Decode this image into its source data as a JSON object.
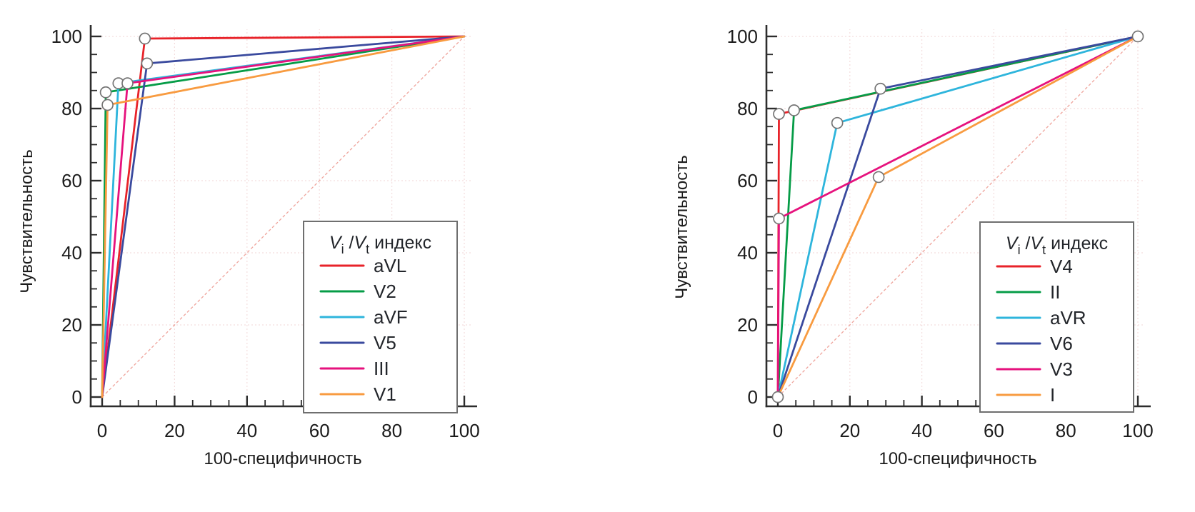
{
  "style": {
    "background": "#ffffff",
    "axis_color": "#2d2d2d",
    "tick_label_color": "#1c1c1c",
    "grid_color": "#f3dddd",
    "diagonal_color": "#efa49c",
    "marker_fill": "#ffffff",
    "marker_stroke": "#757575",
    "legend_border": "#6f6f6f",
    "legend_text": "#23262b"
  },
  "legend_title_parts": {
    "v1": "V",
    "sub1": "i",
    "slash": " /",
    "v2": "V",
    "sub2": "t",
    "word": " индекс"
  },
  "chart_data": [
    {
      "type": "line",
      "kind": "roc",
      "title": "",
      "xlabel": "100-специфичность",
      "ylabel": "Чувствительность",
      "xlim": [
        0,
        100
      ],
      "ylim": [
        0,
        100
      ],
      "x_ticks": [
        0,
        20,
        40,
        60,
        80,
        100
      ],
      "y_ticks": [
        0,
        20,
        40,
        60,
        80,
        100
      ],
      "minor_tick_step": 5,
      "grid": true,
      "legend_position": "lower right",
      "legend_title": "Vi/Vt индекс",
      "series": [
        {
          "name": "aVL",
          "color": "#e8232a",
          "points": [
            [
              0,
              0
            ],
            [
              11.8,
              99.4
            ],
            [
              100,
              100
            ]
          ],
          "operating_point": [
            11.8,
            99.4
          ]
        },
        {
          "name": "V2",
          "color": "#069c47",
          "points": [
            [
              0,
              0
            ],
            [
              1,
              84.5
            ],
            [
              100,
              100
            ]
          ],
          "operating_point": [
            1,
            84.5
          ]
        },
        {
          "name": "aVF",
          "color": "#2eb5dc",
          "points": [
            [
              0,
              0
            ],
            [
              4.5,
              87
            ],
            [
              100,
              100
            ]
          ],
          "operating_point": [
            4.5,
            87
          ]
        },
        {
          "name": "V5",
          "color": "#3a4a9e",
          "points": [
            [
              0,
              0
            ],
            [
              12.4,
              92.5
            ],
            [
              100,
              100
            ]
          ],
          "operating_point": [
            12.4,
            92.5
          ]
        },
        {
          "name": "III",
          "color": "#e6127d",
          "points": [
            [
              0,
              0
            ],
            [
              7,
              87
            ],
            [
              100,
              100
            ]
          ],
          "operating_point": [
            7,
            87
          ]
        },
        {
          "name": "V1",
          "color": "#f89b40",
          "points": [
            [
              0,
              0
            ],
            [
              1.5,
              81
            ],
            [
              100,
              100
            ]
          ],
          "operating_point": [
            1.5,
            81
          ]
        }
      ],
      "reference_line": [
        [
          0,
          0
        ],
        [
          100,
          100
        ]
      ],
      "shared_markers": []
    },
    {
      "type": "line",
      "kind": "roc",
      "title": "",
      "xlabel": "100-специфичность",
      "ylabel": "Чувствительность",
      "xlim": [
        0,
        100
      ],
      "ylim": [
        0,
        100
      ],
      "x_ticks": [
        0,
        20,
        40,
        60,
        80,
        100
      ],
      "y_ticks": [
        0,
        20,
        40,
        60,
        80,
        100
      ],
      "minor_tick_step": 5,
      "grid": true,
      "legend_position": "lower right",
      "legend_title": "Vi/Vt индекс",
      "series": [
        {
          "name": "V4",
          "color": "#e8232a",
          "points": [
            [
              0,
              0
            ],
            [
              0.3,
              78.5
            ],
            [
              100,
              100
            ]
          ],
          "operating_point": [
            0.3,
            78.5
          ]
        },
        {
          "name": "II",
          "color": "#069c47",
          "points": [
            [
              0,
              0
            ],
            [
              4.5,
              79.5
            ],
            [
              100,
              100
            ]
          ],
          "operating_point": [
            4.5,
            79.5
          ]
        },
        {
          "name": "aVR",
          "color": "#2eb5dc",
          "points": [
            [
              0,
              0
            ],
            [
              16.5,
              76
            ],
            [
              100,
              100
            ]
          ],
          "operating_point": [
            16.5,
            76
          ]
        },
        {
          "name": "V6",
          "color": "#3a4a9e",
          "points": [
            [
              0,
              0
            ],
            [
              28.5,
              85.5
            ],
            [
              100,
              100
            ]
          ],
          "operating_point": [
            28.5,
            85.5
          ]
        },
        {
          "name": "V3",
          "color": "#e6127d",
          "points": [
            [
              0,
              0
            ],
            [
              0.3,
              49.5
            ],
            [
              100,
              100
            ]
          ],
          "operating_point": [
            0.3,
            49.5
          ]
        },
        {
          "name": "I",
          "color": "#f89b40",
          "points": [
            [
              0,
              0
            ],
            [
              28,
              61
            ],
            [
              100,
              100
            ]
          ],
          "operating_point": [
            28,
            61
          ]
        }
      ],
      "reference_line": [
        [
          0,
          0
        ],
        [
          100,
          100
        ]
      ],
      "shared_markers": [
        [
          0,
          0
        ],
        [
          100,
          100
        ]
      ]
    }
  ]
}
